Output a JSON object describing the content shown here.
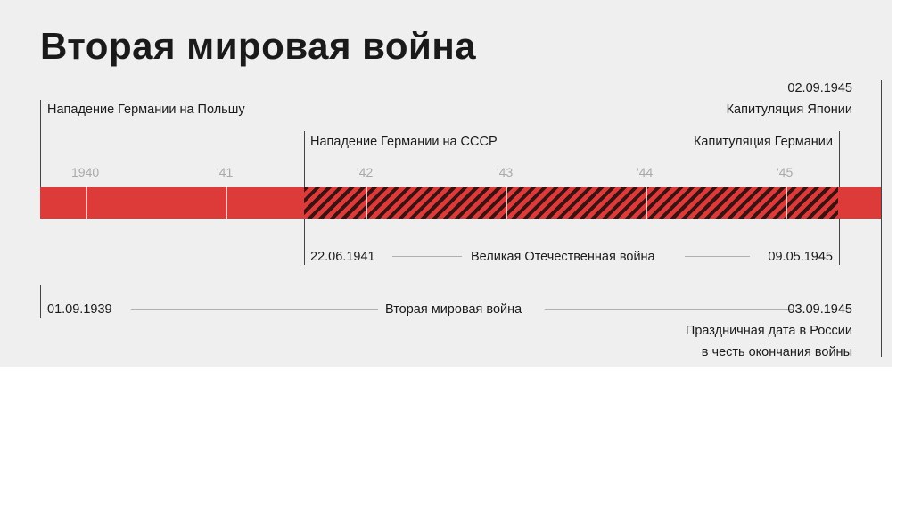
{
  "title": "Вторая мировая война",
  "colors": {
    "bar": "#dd3a3a",
    "hatch": "#3a1212",
    "panel": "#efefef"
  },
  "year_ticks": [
    "1940",
    "'41",
    "'42",
    "'43",
    "'44",
    "'45"
  ],
  "events_top": {
    "poland": "Нападение Германии на Польшу",
    "ussr": "Нападение Германии на СССР",
    "japan_date": "02.09.1945",
    "japan": "Капитуляция Японии",
    "germany": "Капитуляция Германии"
  },
  "gpw": {
    "start": "22.06.1941",
    "label": "Великая Отечественная война",
    "end": "09.05.1945"
  },
  "ww2": {
    "start": "01.09.1939",
    "label": "Вторая мировая война",
    "end": "03.09.1945"
  },
  "note": {
    "line1": "Праздничная дата в России",
    "line2": "в честь окончания войны"
  }
}
